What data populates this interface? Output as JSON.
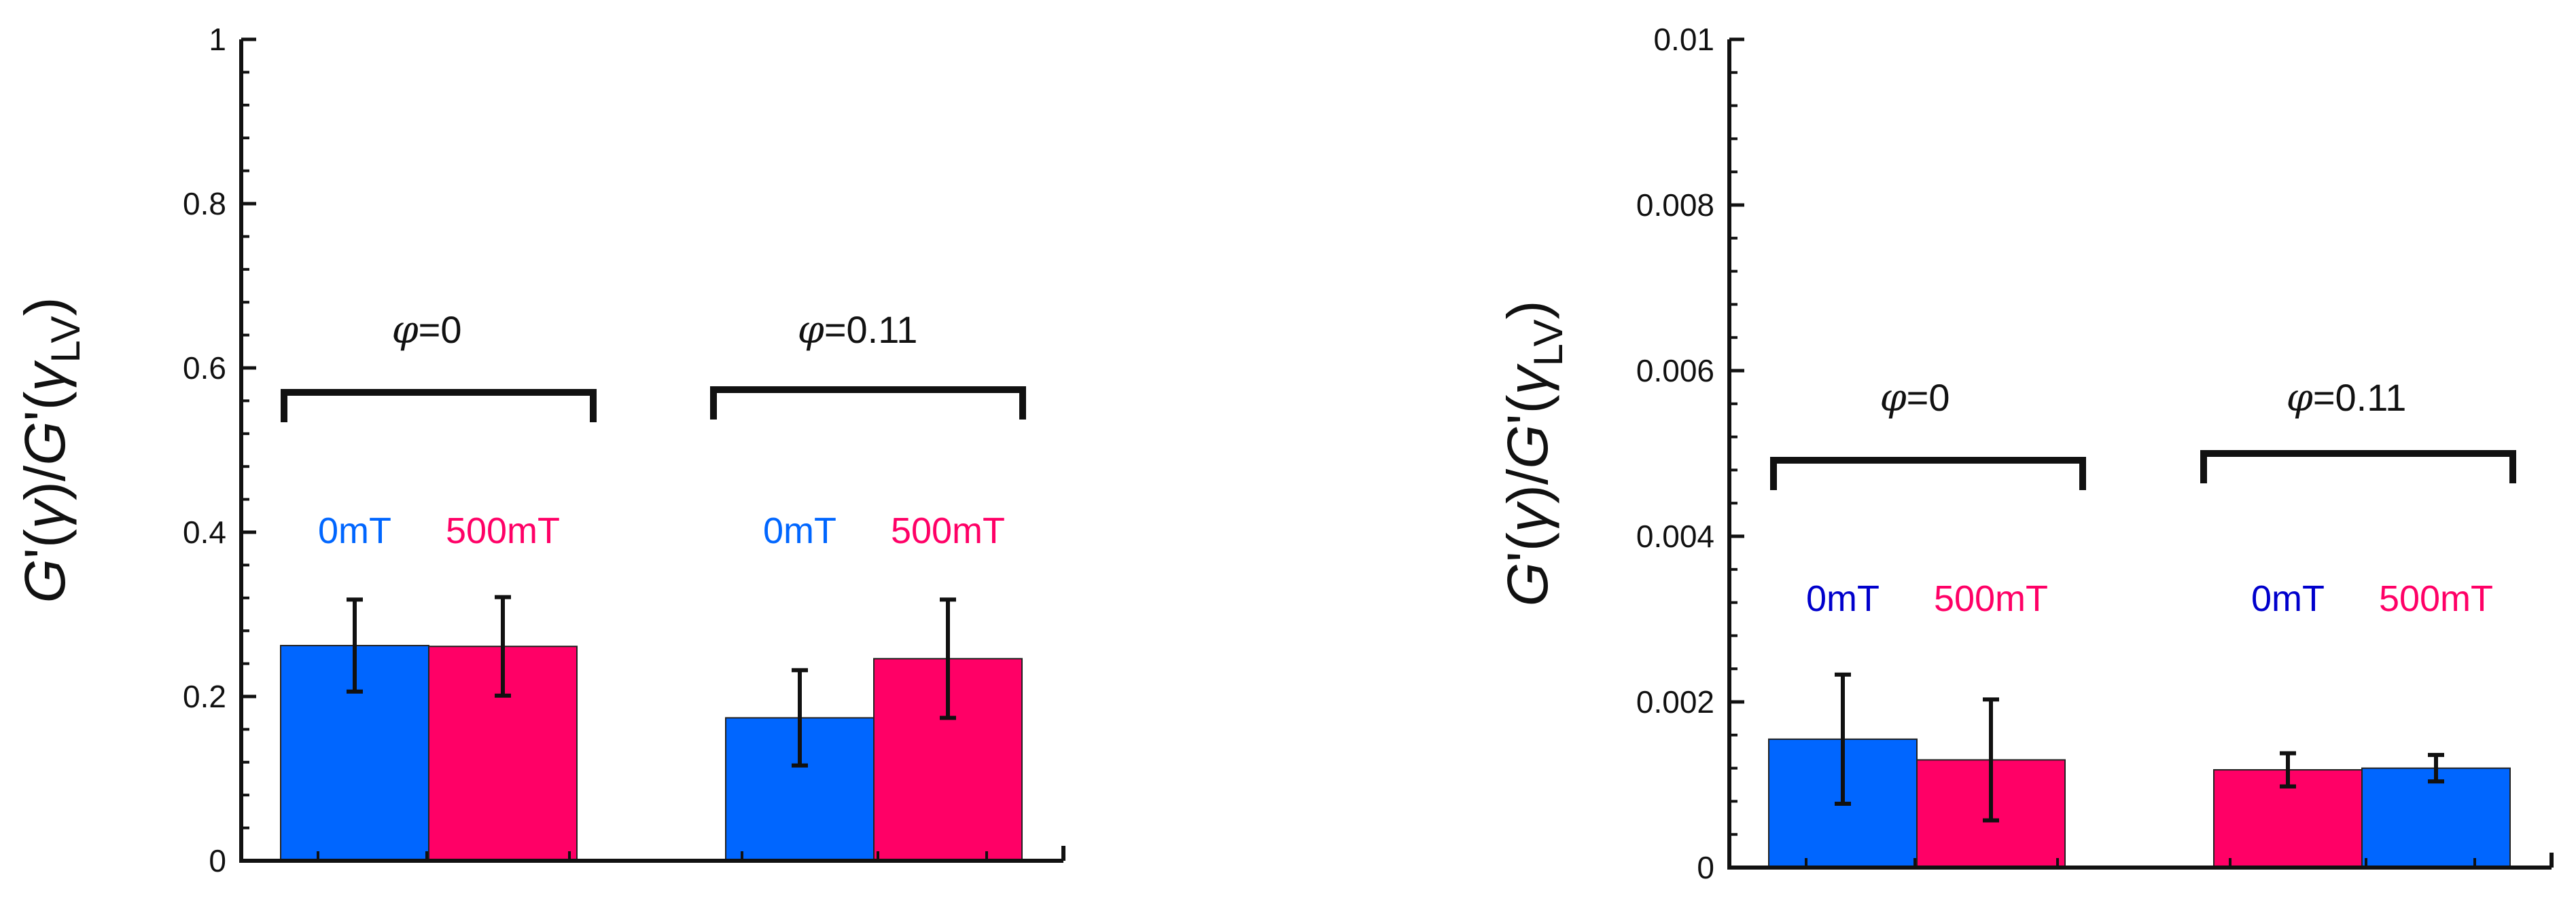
{
  "chart_data": [
    {
      "type": "bar",
      "ylabel_parts": [
        "G",
        "'(",
        "γ",
        ")/",
        "G",
        "'(",
        "γ",
        "LV",
        ")"
      ],
      "ylim": [
        0,
        1
      ],
      "yticks": [
        0,
        0.2,
        0.4,
        0.6,
        0.8,
        1
      ],
      "ytick_labels": [
        "0",
        "0.2",
        "0.4",
        "0.6",
        "0.8",
        "1"
      ],
      "groups": [
        {
          "phi_symbol": "φ",
          "phi_value": "=0",
          "bars": [
            {
              "label": "0mT",
              "value": 0.262,
              "error": 0.056,
              "color": "#0066ff",
              "label_color": "#0066ff"
            },
            {
              "label": "500mT",
              "value": 0.261,
              "error": 0.06,
              "color": "#ff0066",
              "label_color": "#ff0066"
            }
          ]
        },
        {
          "phi_symbol": "φ",
          "phi_value": "=0.11",
          "bars": [
            {
              "label": "0mT",
              "value": 0.174,
              "error": 0.058,
              "color": "#0066ff",
              "label_color": "#0066ff"
            },
            {
              "label": "500mT",
              "value": 0.246,
              "error": 0.072,
              "color": "#ff0066",
              "label_color": "#ff0066"
            }
          ]
        }
      ]
    },
    {
      "type": "bar",
      "ylabel_parts": [
        "G",
        "'(",
        "γ",
        ")/",
        "G",
        "'(",
        "γ",
        "LV",
        ")"
      ],
      "ylim": [
        0,
        0.01
      ],
      "yticks": [
        0,
        0.002,
        0.004,
        0.006,
        0.008,
        0.01
      ],
      "ytick_labels": [
        "0",
        "0.002",
        "0.004",
        "0.006",
        "0.008",
        "0.01"
      ],
      "groups": [
        {
          "phi_symbol": "φ",
          "phi_value": "=0",
          "bars": [
            {
              "label": "0mT",
              "value": 0.00155,
              "error": 0.00078,
              "color": "#0066ff",
              "label_color": "#0000cc"
            },
            {
              "label": "500mT",
              "value": 0.0013,
              "error": 0.00073,
              "color": "#ff0066",
              "label_color": "#ff0066"
            }
          ]
        },
        {
          "phi_symbol": "φ",
          "phi_value": "=0.11",
          "bars": [
            {
              "label": "0mT",
              "value": 0.00118,
              "error": 0.0002,
              "color": "#ff0066",
              "label_color": "#0000cc"
            },
            {
              "label": "500mT",
              "value": 0.0012,
              "error": 0.00016,
              "color": "#0066ff",
              "label_color": "#ff0066"
            }
          ]
        }
      ]
    }
  ]
}
